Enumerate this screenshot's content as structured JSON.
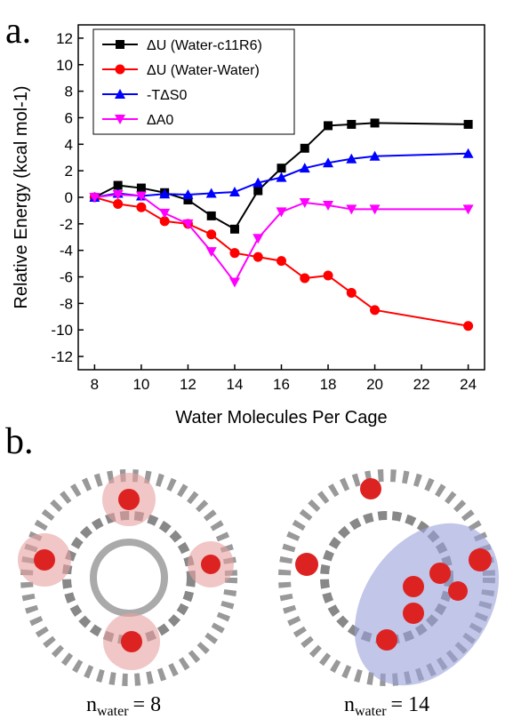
{
  "panel_a": "a.",
  "panel_b": "b.",
  "chart_data": {
    "type": "line",
    "xlabel": "Water Molecules Per Cage",
    "ylabel": "Relative Energy  (kcal mol-1)",
    "x": [
      8,
      9,
      10,
      11,
      12,
      13,
      14,
      15,
      16,
      17,
      18,
      19,
      20,
      24
    ],
    "xlim": [
      7.3,
      24.7
    ],
    "xticks": [
      8,
      10,
      12,
      14,
      16,
      18,
      20,
      22,
      24
    ],
    "ylim": [
      -13,
      13
    ],
    "yticks": [
      -12,
      -10,
      -8,
      -6,
      -4,
      -2,
      0,
      2,
      4,
      6,
      8,
      10,
      12
    ],
    "legend": "upper left",
    "grid": false,
    "series": [
      {
        "name": "ΔU (Water-c11R6)",
        "color": "#000000",
        "marker": "square",
        "values": [
          0,
          0.9,
          0.7,
          0.35,
          -0.2,
          -1.4,
          -2.4,
          0.5,
          2.2,
          3.7,
          5.4,
          5.5,
          5.6,
          5.5
        ]
      },
      {
        "name": "ΔU (Water-Water)",
        "color": "#ff0000",
        "marker": "circle",
        "values": [
          0,
          -0.5,
          -0.75,
          -1.8,
          -2.0,
          -2.8,
          -4.2,
          -4.5,
          -4.8,
          -6.1,
          -5.9,
          -7.2,
          -8.5,
          -9.7
        ]
      },
      {
        "name": "-TΔS0",
        "color": "#0000ff",
        "marker": "triangle-up",
        "values": [
          0,
          0.3,
          0.1,
          0.25,
          0.2,
          0.3,
          0.4,
          1.1,
          1.5,
          2.2,
          2.6,
          2.9,
          3.1,
          3.3
        ]
      },
      {
        "name": "ΔA0",
        "color": "#ff00ff",
        "marker": "triangle-down",
        "values": [
          0,
          0.2,
          0.1,
          -1.2,
          -2.0,
          -4.1,
          -6.4,
          -3.1,
          -1.1,
          -0.4,
          -0.6,
          -0.9,
          -0.9,
          -0.9
        ]
      }
    ]
  },
  "captions": [
    {
      "symbol": "n",
      "subscript": "water",
      "text": "= 8"
    },
    {
      "symbol": "n",
      "subscript": "water",
      "text": "= 14"
    }
  ]
}
